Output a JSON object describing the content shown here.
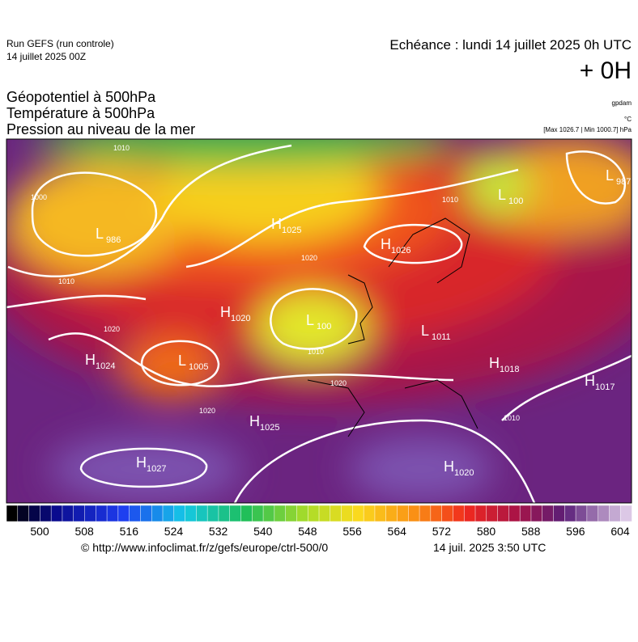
{
  "header": {
    "run": "Run GEFS (run controle)",
    "run_date": "14 juillet 2025 00Z",
    "echeance": "Echéance : lundi 14 juillet 2025 0h UTC",
    "lead": "+ 0H"
  },
  "titles": [
    "Géopotentiel à 500hPa",
    "Température à 500hPa",
    "Pression au niveau de la mer"
  ],
  "units": [
    "gpdam",
    "°C",
    "[Max 1026.7 | Min 1000.7] hPa"
  ],
  "centers": [
    {
      "letter": "L",
      "value": "986"
    },
    {
      "letter": "H",
      "value": "1025"
    },
    {
      "letter": "H",
      "value": "1026"
    },
    {
      "letter": "H",
      "value": "1020"
    },
    {
      "letter": "L",
      "value": "100"
    },
    {
      "letter": "L",
      "value": "1011"
    },
    {
      "letter": "H",
      "value": "1024"
    },
    {
      "letter": "L",
      "value": "1005"
    },
    {
      "letter": "H",
      "value": "1025"
    },
    {
      "letter": "H",
      "value": "1027"
    },
    {
      "letter": "H",
      "value": "1020"
    },
    {
      "letter": "H",
      "value": "1018"
    },
    {
      "letter": "H",
      "value": "1017"
    },
    {
      "letter": "L",
      "value": "987"
    },
    {
      "letter": "L",
      "value": "100"
    }
  ],
  "isobar_labels": [
    "1010",
    "1000",
    "1010",
    "1020",
    "1020",
    "1020",
    "1010",
    "1010",
    "1010",
    "1020"
  ],
  "colorbar_ticks": [
    500,
    508,
    516,
    524,
    532,
    540,
    548,
    556,
    564,
    572,
    580,
    588,
    596,
    604
  ],
  "footer": {
    "source": "© http://www.infoclimat.fr/z/gefs/europe/ctrl-500/0",
    "timestamp": "14 juil. 2025  3:50 UTC"
  }
}
